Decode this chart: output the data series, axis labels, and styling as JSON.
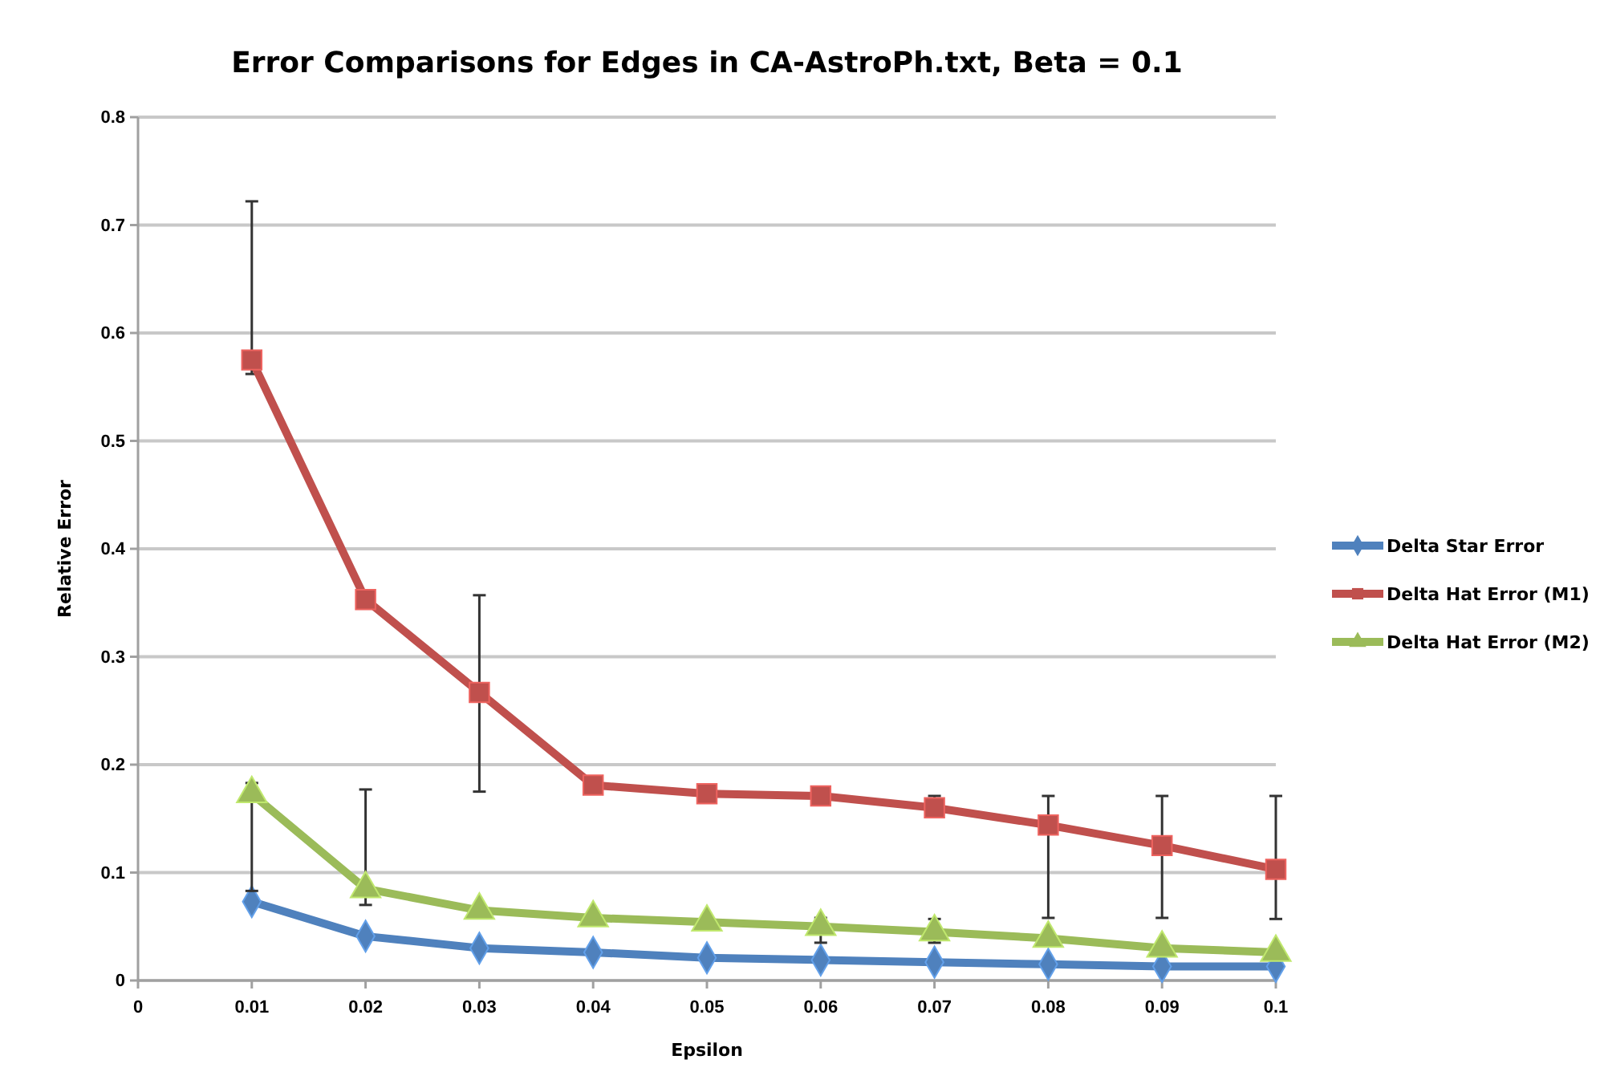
{
  "chart_data": {
    "type": "line",
    "title": "Error Comparisons for Edges in CA-AstroPh.txt, Beta = 0.1",
    "xlabel": "Epsilon",
    "ylabel": "Relative Error",
    "x": [
      0.01,
      0.02,
      0.03,
      0.04,
      0.05,
      0.06,
      0.07,
      0.08,
      0.09,
      0.1
    ],
    "xlim": [
      0,
      0.1
    ],
    "xticks": [
      0,
      0.01,
      0.02,
      0.03,
      0.04,
      0.05,
      0.06,
      0.07,
      0.08,
      0.09,
      0.1
    ],
    "ylim": [
      0,
      0.8
    ],
    "yticks": [
      0,
      0.1,
      0.2,
      0.3,
      0.4,
      0.5,
      0.6,
      0.7,
      0.8
    ],
    "grid": "y",
    "legend": "right",
    "series": [
      {
        "name": "Delta Star Error",
        "color": "#4f81bd",
        "marker": "diamond",
        "values": [
          0.073,
          0.041,
          0.03,
          0.026,
          0.021,
          0.019,
          0.017,
          0.015,
          0.013,
          0.013
        ]
      },
      {
        "name": "Delta Hat Error (M1)",
        "color": "#c0504d",
        "marker": "square",
        "values": [
          0.575,
          0.353,
          0.267,
          0.181,
          0.173,
          0.171,
          0.16,
          0.144,
          0.125,
          0.103
        ],
        "errors": [
          [
            0.562,
            0.722
          ],
          null,
          [
            0.175,
            0.357
          ],
          null,
          null,
          null,
          [
            0.152,
            0.171
          ],
          [
            0.058,
            0.171
          ],
          [
            0.058,
            0.171
          ],
          [
            0.057,
            0.171
          ]
        ]
      },
      {
        "name": "Delta Hat Error (M2)",
        "color": "#9bbb59",
        "marker": "triangle",
        "values": [
          0.173,
          0.085,
          0.065,
          0.058,
          0.054,
          0.05,
          0.045,
          0.039,
          0.03,
          0.026
        ],
        "errors": [
          [
            0.083,
            0.183
          ],
          [
            0.07,
            0.177
          ],
          null,
          null,
          null,
          [
            0.035,
            0.058
          ],
          [
            0.035,
            0.057
          ],
          null,
          null,
          null
        ]
      }
    ]
  }
}
